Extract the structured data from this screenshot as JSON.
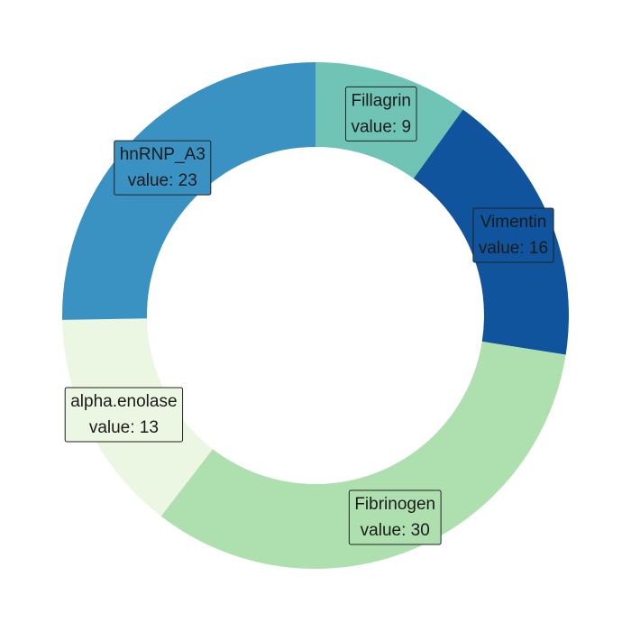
{
  "chart_data": {
    "type": "pie",
    "donut": true,
    "start": "top, clockwise",
    "slices": [
      {
        "category": "Fillagrin",
        "value": 9,
        "label_line_1": "Fillagrin",
        "label_line_2": "value: 9",
        "color": "#6fc4b6"
      },
      {
        "category": "Vimentin",
        "value": 16,
        "label_line_1": "Vimentin",
        "label_line_2": "value: 16",
        "color": "#0f549c"
      },
      {
        "category": "Fibrinogen",
        "value": 30,
        "label_line_1": "Fibrinogen",
        "label_line_2": "value: 30",
        "color": "#aedfae"
      },
      {
        "category": "alpha.enolase",
        "value": 13,
        "label_line_1": "alpha.enolase",
        "label_line_2": "value: 13",
        "color": "#ecf7e3"
      },
      {
        "category": "hnRNP_A3",
        "value": 23,
        "label_line_1": "hnRNP_A3",
        "label_line_2": "value: 23",
        "color": "#3a92c3"
      }
    ]
  }
}
